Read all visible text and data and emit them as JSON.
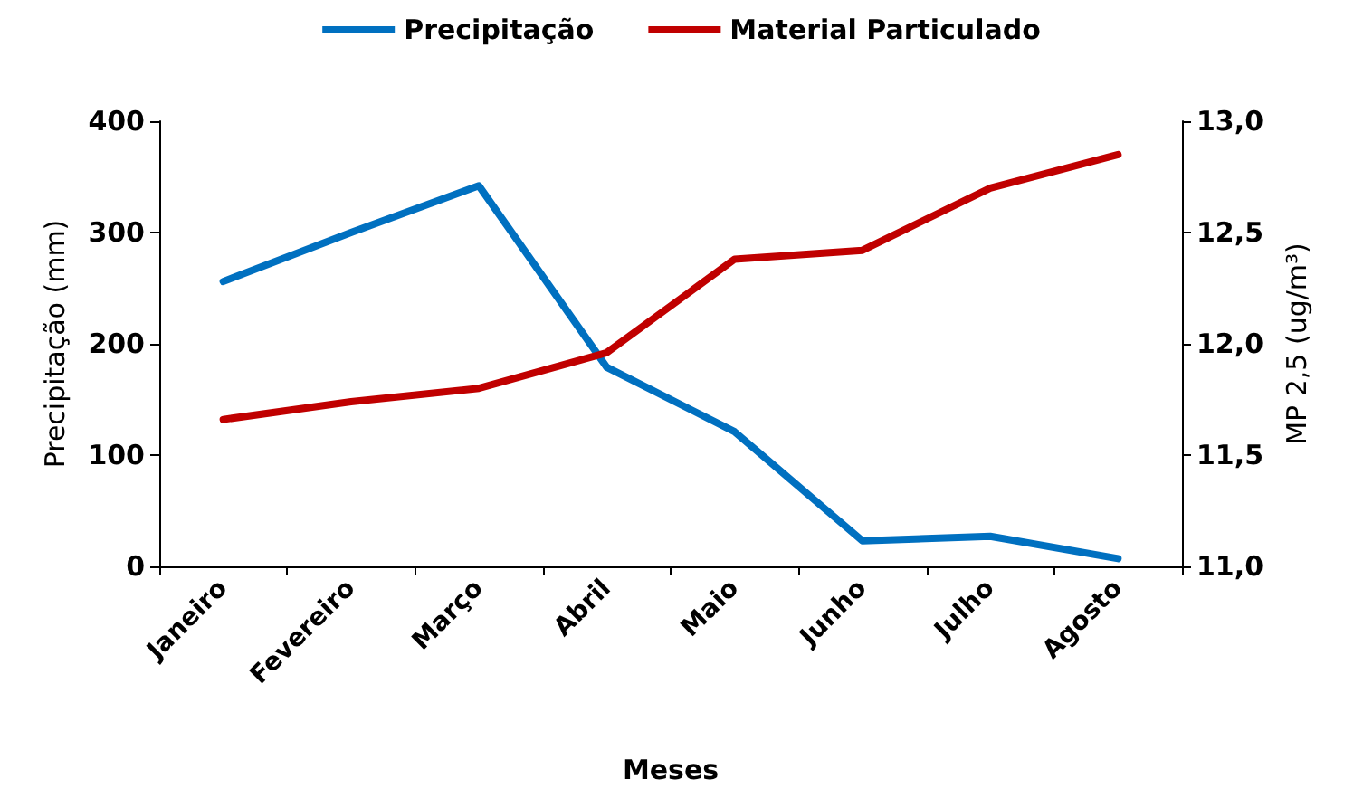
{
  "chart_data": {
    "type": "line",
    "xlabel": "Meses",
    "ylabel": "Precipitação (mm)",
    "y2label": "MP 2,5 (ug/m³)",
    "categories": [
      "Janeiro",
      "Fevereiro",
      "Março",
      "Abril",
      "Maio",
      "Junho",
      "Julho",
      "Agosto"
    ],
    "series": [
      {
        "name": "Precipitação",
        "color": "#0070c0",
        "values": [
          256,
          300,
          342,
          179,
          121,
          23,
          27,
          7
        ]
      },
      {
        "name": "Material Particulado",
        "color": "#c00000",
        "axis": "y2",
        "values": [
          11.66,
          11.74,
          11.8,
          11.96,
          12.38,
          12.42,
          12.7,
          12.85
        ]
      }
    ],
    "ylim": [
      0,
      400
    ],
    "yticks": [
      0,
      100,
      200,
      300,
      400
    ],
    "y2lim": [
      11,
      13
    ],
    "y2ticks": [
      {
        "value": 11,
        "label": "11,0"
      },
      {
        "value": 11.5,
        "label": "11,5"
      },
      {
        "value": 12,
        "label": "12,0"
      },
      {
        "value": 12.5,
        "label": "12,5"
      },
      {
        "value": 13,
        "label": "13,0"
      }
    ],
    "legend": "top",
    "grid": false,
    "marker": "none",
    "line_style": "solid"
  }
}
